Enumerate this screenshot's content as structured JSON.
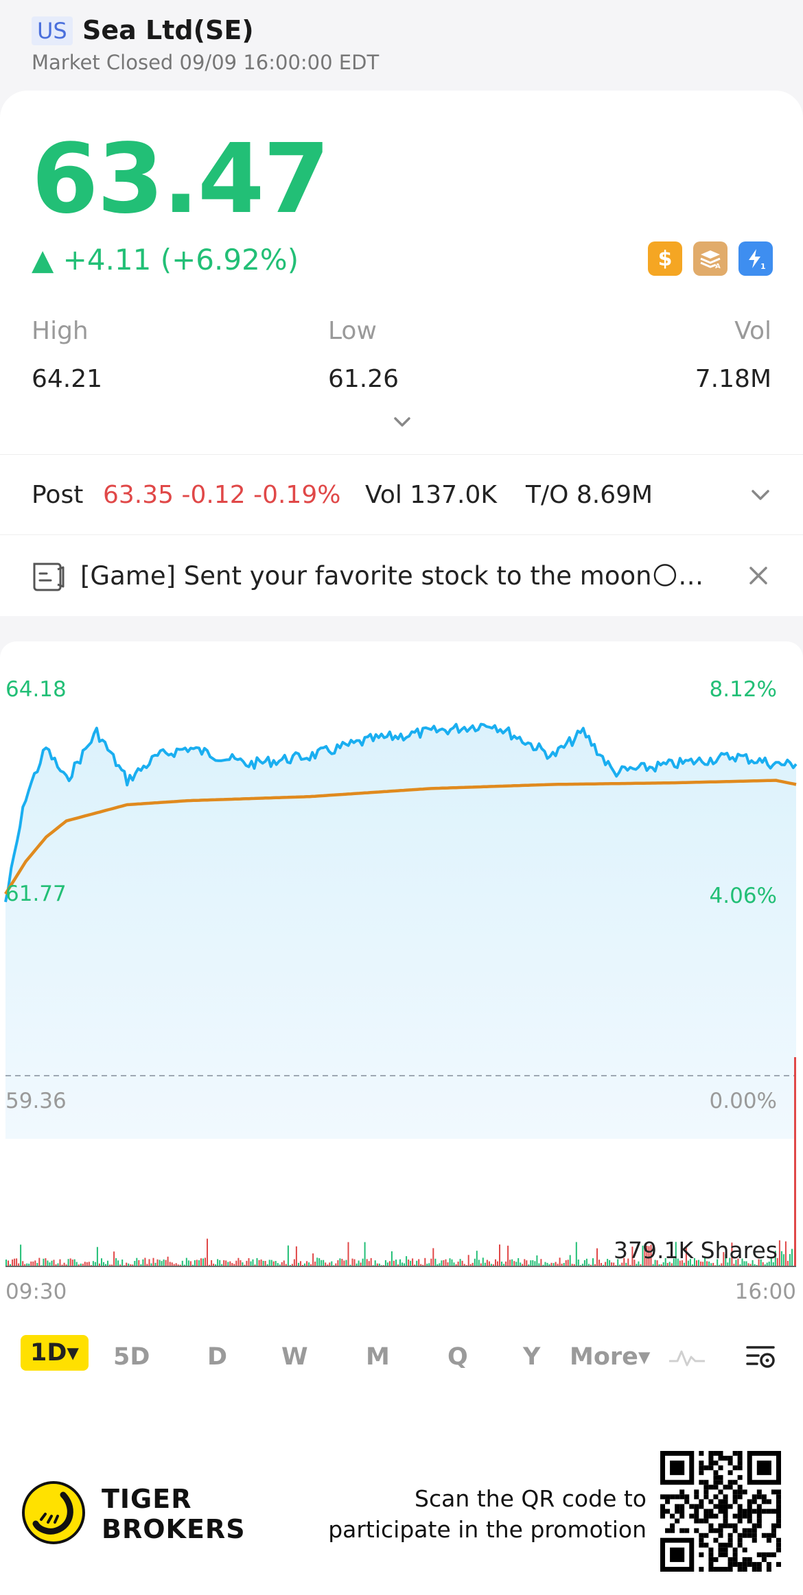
{
  "header": {
    "market": "US",
    "name": "Sea Ltd(SE)",
    "status": "Market Closed 09/09 16:00:00 EDT"
  },
  "quote": {
    "price": "63.47",
    "change": "▲ +4.11 (+6.92%)",
    "badges": [
      "dollar-icon",
      "stack-a-icon",
      "flash-1-icon"
    ]
  },
  "stats": {
    "high_label": "High",
    "high_value": "64.21",
    "low_label": "Low",
    "low_value": "61.26",
    "vol_label": "Vol",
    "vol_value": "7.18M"
  },
  "post": {
    "label": "Post",
    "values": "63.35 -0.12 -0.19%",
    "vol": "Vol 137.0K",
    "turnover": "T/O 8.69M"
  },
  "banner": {
    "text": "[Game] Sent your favorite stock to the moon🌕…"
  },
  "chart_data": {
    "type": "line",
    "title": "",
    "xlabel": "",
    "ylabel": "",
    "x_range": [
      "09:30",
      "16:00"
    ],
    "x_ticks": [
      "09:30",
      "16:00"
    ],
    "y_left_ticks": [
      "64.18",
      "61.77",
      "59.36"
    ],
    "y_right_ticks": [
      "8.12%",
      "4.06%",
      "0.00%"
    ],
    "ylim": [
      59.36,
      64.18
    ],
    "series": [
      {
        "color": "#1aaef0",
        "x": [
          "09:30",
          "09:40",
          "09:50",
          "10:00",
          "10:15",
          "10:30",
          "10:45",
          "11:00",
          "11:30",
          "12:00",
          "12:30",
          "13:00",
          "13:30",
          "14:00",
          "14:15",
          "14:30",
          "15:00",
          "15:30",
          "15:50",
          "16:00"
        ],
        "values": [
          61.5,
          62.8,
          63.4,
          63.0,
          63.6,
          63.0,
          63.3,
          63.4,
          63.2,
          63.3,
          63.5,
          63.6,
          63.7,
          63.3,
          63.6,
          63.1,
          63.2,
          63.3,
          63.2,
          63.2
        ]
      },
      {
        "color": "#e08a1e",
        "x": [
          "09:30",
          "09:40",
          "09:50",
          "10:00",
          "10:15",
          "10:30",
          "11:00",
          "12:00",
          "13:00",
          "14:00",
          "15:00",
          "15:50",
          "16:00"
        ],
        "values": [
          61.6,
          62.0,
          62.3,
          62.5,
          62.6,
          62.7,
          62.75,
          62.8,
          62.9,
          62.95,
          62.97,
          63.0,
          62.95
        ]
      }
    ],
    "volume": {
      "label": "379.1K Shares",
      "last_bar_shares": 379100
    },
    "colors": {
      "up": "#22bf76",
      "down": "#e04848"
    }
  },
  "periods": {
    "items": [
      "1D",
      "5D",
      "D",
      "W",
      "M",
      "Q",
      "Y"
    ],
    "active": "1D",
    "more": "More▾"
  },
  "footer": {
    "brand_line1": "TIGER",
    "brand_line2": "BROKERS",
    "promo_line1": "Scan the QR code to",
    "promo_line2": "participate in the promotion"
  }
}
